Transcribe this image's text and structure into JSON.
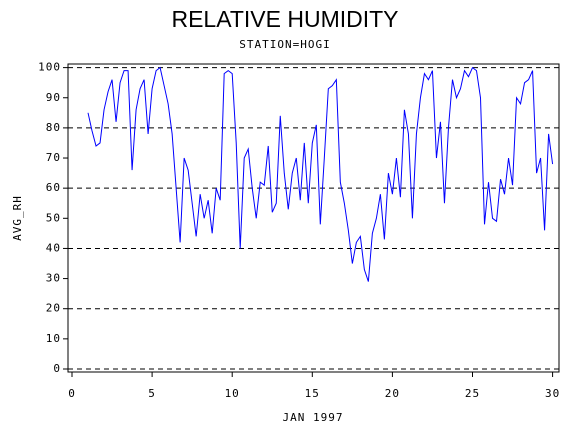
{
  "chart_data": {
    "type": "line",
    "title": "RELATIVE HUMIDITY",
    "subtitle": "STATION=HOGI",
    "x_label": "JAN 1997",
    "y_label": "AVG_RH",
    "color": "#0000ff",
    "x": [
      1,
      1.25,
      1.5,
      1.75,
      2,
      2.25,
      2.5,
      2.75,
      3,
      3.25,
      3.5,
      3.75,
      4,
      4.25,
      4.5,
      4.75,
      5,
      5.25,
      5.5,
      5.75,
      6,
      6.25,
      6.5,
      6.75,
      7,
      7.25,
      7.5,
      7.75,
      8,
      8.25,
      8.5,
      8.75,
      9,
      9.25,
      9.5,
      9.75,
      10,
      10.25,
      10.5,
      10.75,
      11,
      11.25,
      11.5,
      11.75,
      12,
      12.25,
      12.5,
      12.75,
      13,
      13.25,
      13.5,
      13.75,
      14,
      14.25,
      14.5,
      14.75,
      15,
      15.25,
      15.5,
      15.75,
      16,
      16.25,
      16.5,
      16.75,
      17,
      17.25,
      17.5,
      17.75,
      18,
      18.25,
      18.5,
      18.75,
      19,
      19.25,
      19.5,
      19.75,
      20,
      20.25,
      20.5,
      20.75,
      21,
      21.25,
      21.5,
      21.75,
      22,
      22.25,
      22.5,
      22.75,
      23,
      23.25,
      23.5,
      23.75,
      24,
      24.25,
      24.5,
      24.75,
      25,
      25.25,
      25.5,
      25.75,
      26,
      26.25,
      26.5,
      26.75,
      27,
      27.25,
      27.5,
      27.75,
      28,
      28.25,
      28.5,
      28.75,
      29,
      29.25,
      29.5,
      29.75,
      30
    ],
    "values": [
      85,
      79,
      74,
      75,
      86,
      92,
      96,
      82,
      95,
      99,
      99,
      66,
      86,
      93,
      96,
      78,
      93,
      99,
      100,
      94,
      88,
      78,
      60,
      42,
      70,
      66,
      55,
      44,
      58,
      50,
      56,
      45,
      60,
      56,
      98,
      99,
      98,
      75,
      40,
      70,
      73,
      60,
      50,
      62,
      61,
      74,
      52,
      55,
      84,
      65,
      53,
      65,
      70,
      56,
      75,
      55,
      75,
      81,
      48,
      70,
      93,
      94,
      96,
      62,
      55,
      46,
      35,
      42,
      44,
      33,
      29,
      45,
      50,
      58,
      43,
      65,
      58,
      70,
      57,
      86,
      78,
      50,
      78,
      90,
      98,
      96,
      99,
      70,
      82,
      55,
      80,
      96,
      90,
      93,
      99,
      97,
      100,
      99,
      90,
      48,
      62,
      50,
      49,
      63,
      58,
      70,
      61,
      90,
      88,
      95,
      96,
      99,
      65,
      70,
      46,
      78,
      68
    ],
    "xlim": [
      -0.25,
      30.4
    ],
    "ylim": [
      -1,
      101.2
    ],
    "xticks": [
      0,
      5,
      10,
      15,
      20,
      25,
      30
    ],
    "yticks": [
      0,
      10,
      20,
      30,
      40,
      50,
      60,
      70,
      80,
      90,
      100
    ],
    "ygrid": [
      0,
      20,
      40,
      60,
      80,
      100
    ]
  }
}
